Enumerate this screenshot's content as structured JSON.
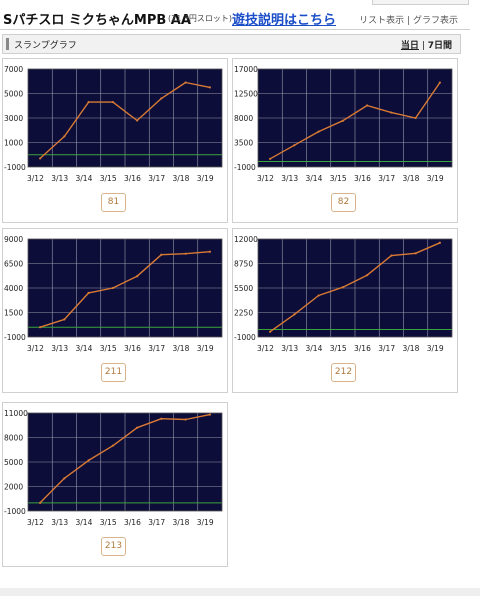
{
  "header": {
    "title": "Sパチスロ ミクちゃんMPB AA",
    "subtitle": "(21.3円スロット)",
    "howto_link": "遊技説明はこちら",
    "list_view": "リスト表示",
    "separator": "|",
    "graph_view": "グラフ表示"
  },
  "section": {
    "title": "スランプグラフ",
    "period_today": "当日",
    "period_sep": "|",
    "period_7days": "7日間"
  },
  "colors": {
    "plot_bg": "#0d0d3a",
    "grid": "#9a9aa8",
    "line": "#d97a33",
    "zero_line": "#3aa43a",
    "badge_text": "#b07a3c"
  },
  "chart_data": [
    {
      "type": "line",
      "machine": "81",
      "x": [
        "3/12",
        "3/13",
        "3/14",
        "3/15",
        "3/16",
        "3/17",
        "3/18",
        "3/19"
      ],
      "ylim": [
        -1000,
        7000
      ],
      "yticks": [
        "7000",
        "5000",
        "3000",
        "1000",
        "-1000"
      ],
      "series": [
        {
          "values": [
            -300,
            1500,
            4300,
            4300,
            2800,
            4600,
            5900,
            5500
          ]
        }
      ]
    },
    {
      "type": "line",
      "machine": "82",
      "x": [
        "3/12",
        "3/13",
        "3/14",
        "3/15",
        "3/16",
        "3/17",
        "3/18",
        "3/19"
      ],
      "ylim": [
        -1000,
        17000
      ],
      "yticks": [
        "17000",
        "12500",
        "8000",
        "3500",
        "-1000"
      ],
      "series": [
        {
          "values": [
            500,
            3000,
            5500,
            7500,
            10300,
            9000,
            8000,
            14500
          ]
        }
      ]
    },
    {
      "type": "line",
      "machine": "211",
      "x": [
        "3/12",
        "3/13",
        "3/14",
        "3/15",
        "3/16",
        "3/17",
        "3/18",
        "3/19"
      ],
      "ylim": [
        -1000,
        9000
      ],
      "yticks": [
        "9000",
        "6500",
        "4000",
        "1500",
        "-1000"
      ],
      "series": [
        {
          "values": [
            0,
            800,
            3500,
            4000,
            5200,
            7400,
            7500,
            7700
          ]
        }
      ]
    },
    {
      "type": "line",
      "machine": "212",
      "x": [
        "3/12",
        "3/13",
        "3/14",
        "3/15",
        "3/16",
        "3/17",
        "3/18",
        "3/19"
      ],
      "ylim": [
        -1000,
        12000
      ],
      "yticks": [
        "12000",
        "8750",
        "5500",
        "2250",
        "-1000"
      ],
      "series": [
        {
          "values": [
            -300,
            2000,
            4500,
            5600,
            7200,
            9800,
            10100,
            11500
          ]
        }
      ]
    },
    {
      "type": "line",
      "machine": "213",
      "x": [
        "3/12",
        "3/13",
        "3/14",
        "3/15",
        "3/16",
        "3/17",
        "3/18",
        "3/19"
      ],
      "ylim": [
        -1000,
        11000
      ],
      "yticks": [
        "11000",
        "8000",
        "5000",
        "2000",
        "-1000"
      ],
      "series": [
        {
          "values": [
            0,
            3000,
            5200,
            7000,
            9200,
            10300,
            10200,
            10800
          ]
        }
      ]
    }
  ]
}
